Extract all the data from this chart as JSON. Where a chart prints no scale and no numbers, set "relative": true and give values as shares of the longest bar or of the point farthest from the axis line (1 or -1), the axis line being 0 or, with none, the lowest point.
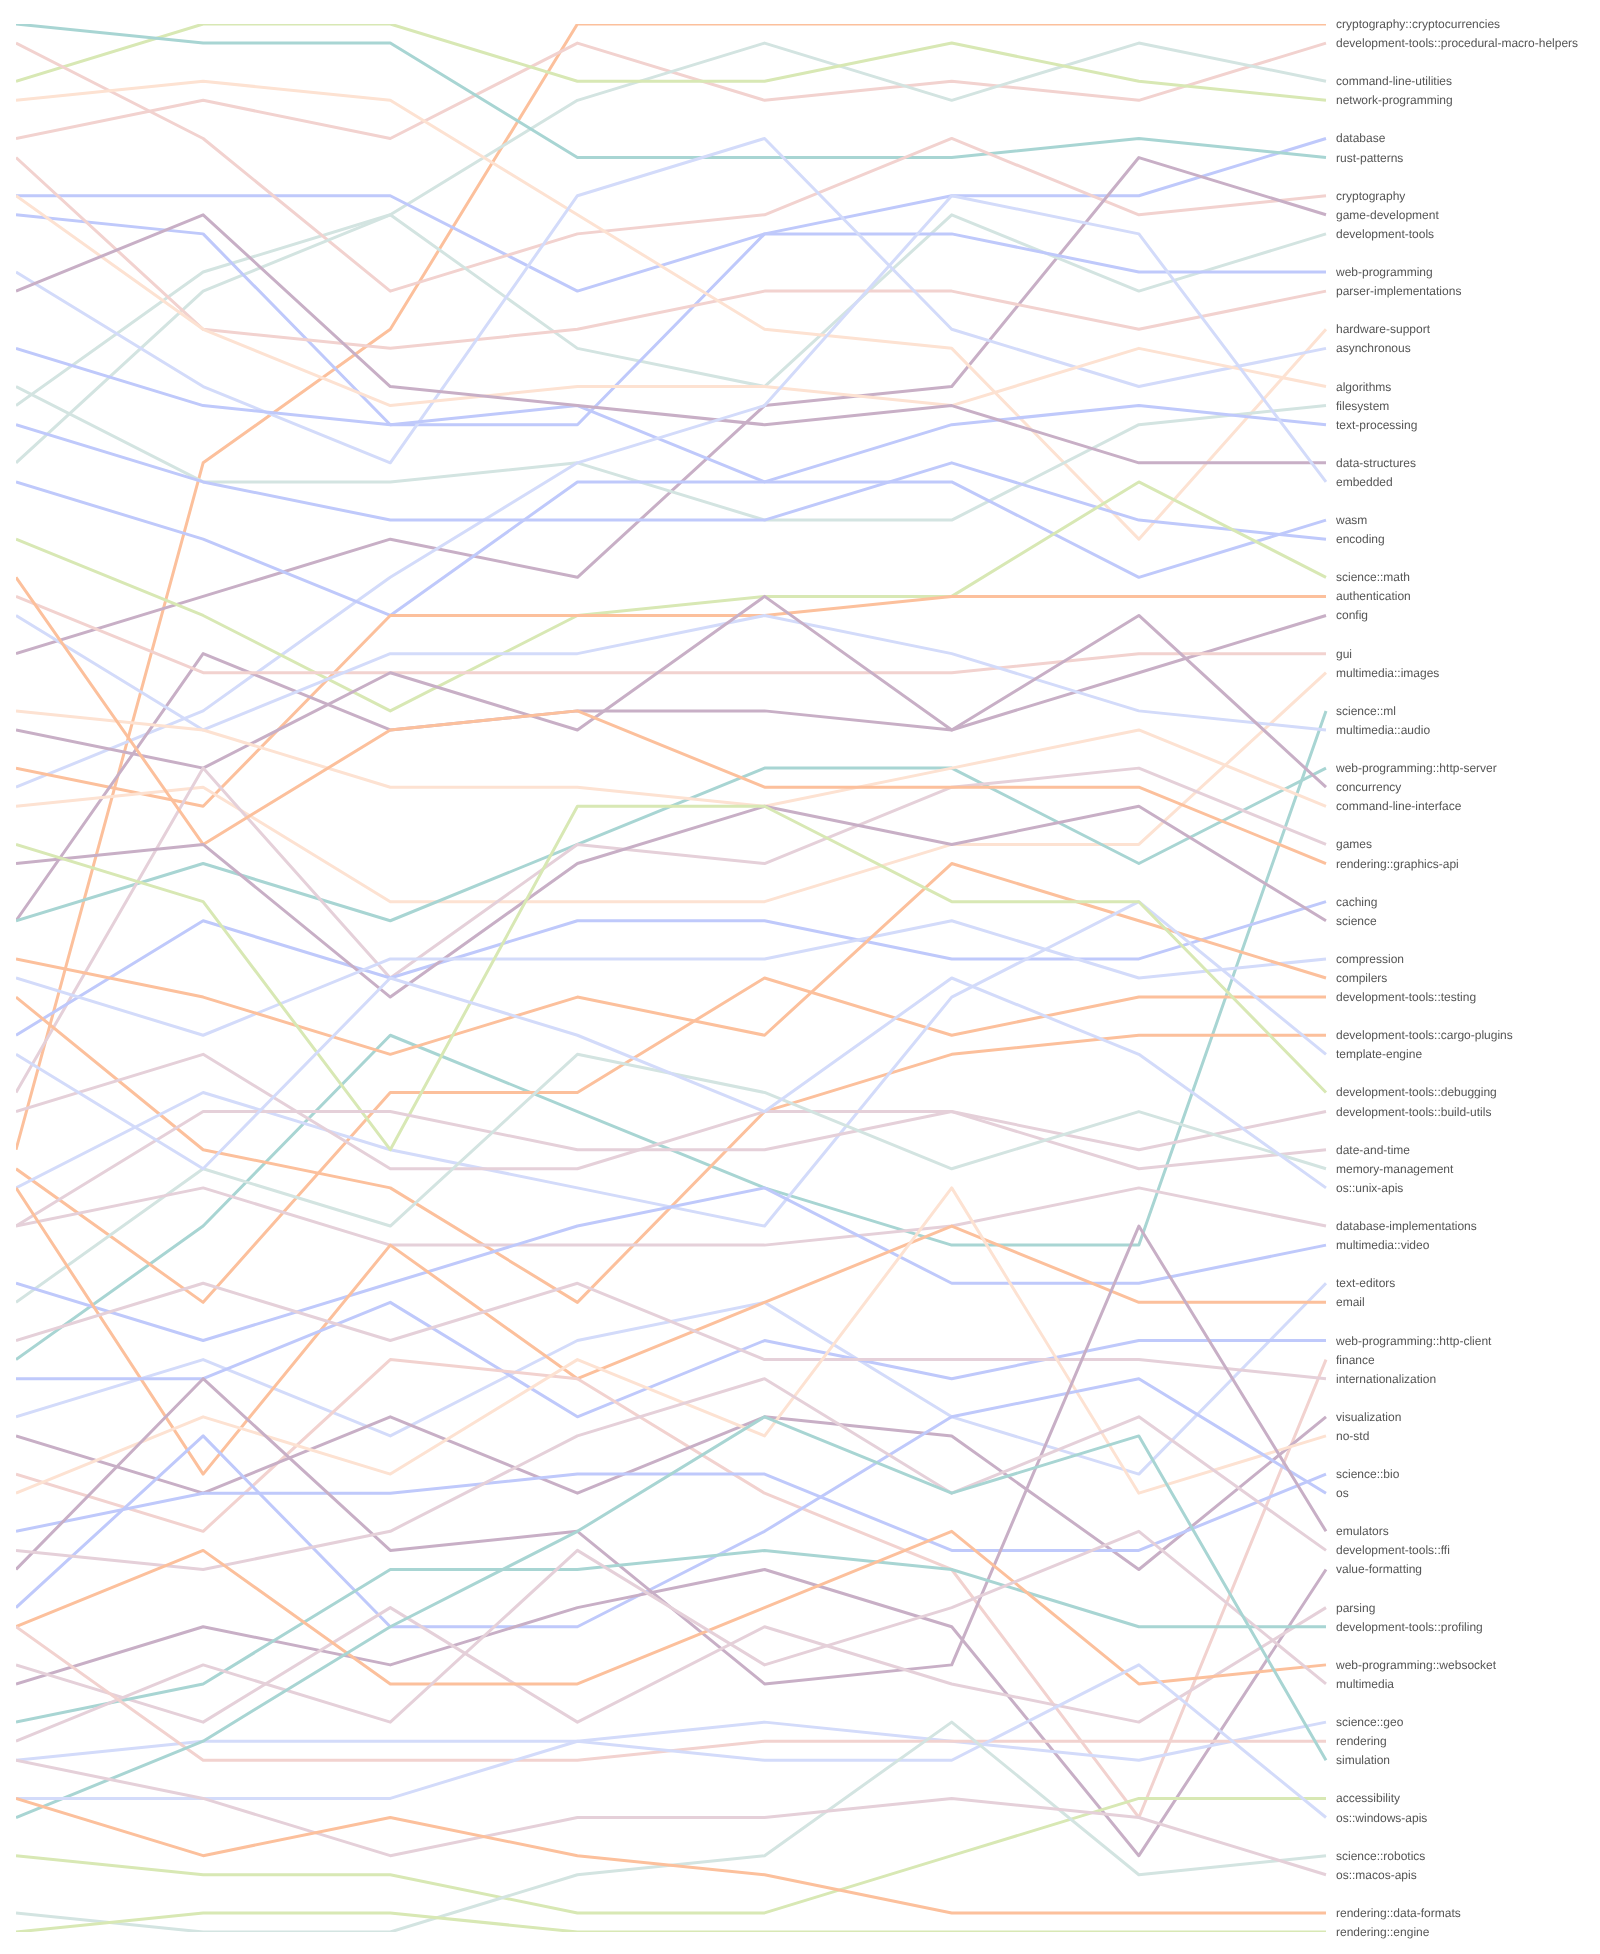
{
  "chart_data": {
    "type": "line",
    "relative": true,
    "categories": [
      null,
      null,
      null,
      null,
      null,
      null,
      null,
      null
    ],
    "series": [
      {
        "name": "cryptography::cryptocurrencies",
        "color": "#fcc09c",
        "values": [
          0.41,
          0.77,
          0.84,
          1,
          1,
          1,
          1,
          1
        ]
      },
      {
        "name": "development-tools::procedural-macro-helpers",
        "color": "#f2d2cf",
        "values": [
          0.94,
          0.96,
          0.94,
          0.99,
          0.96,
          0.97,
          0.96,
          0.99
        ]
      },
      {
        "name": "command-line-utilities",
        "color": "#d3e4e1",
        "values": [
          0.8,
          0.87,
          0.9,
          0.96,
          0.99,
          0.96,
          0.99,
          0.97
        ]
      },
      {
        "name": "network-programming",
        "color": "#d8e8b4",
        "values": [
          0.97,
          1,
          1,
          0.97,
          0.97,
          0.99,
          0.97,
          0.96
        ]
      },
      {
        "name": "database",
        "color": "#bfc9fb",
        "values": [
          0.91,
          0.91,
          0.91,
          0.86,
          0.89,
          0.91,
          0.91,
          0.94
        ]
      },
      {
        "name": "rust-patterns",
        "color": "#a8d5d3",
        "values": [
          1,
          0.99,
          0.99,
          0.93,
          0.93,
          0.93,
          0.94,
          0.93
        ]
      },
      {
        "name": "cryptography",
        "color": "#f2d2cf",
        "values": [
          0.99,
          0.94,
          0.86,
          0.89,
          0.9,
          0.94,
          0.9,
          0.91
        ]
      },
      {
        "name": "game-development",
        "color": "#c8afc6",
        "values": [
          0.67,
          0.7,
          0.73,
          0.71,
          0.8,
          0.81,
          0.93,
          0.9
        ]
      },
      {
        "name": "development-tools",
        "color": "#d3e4e1",
        "values": [
          0.77,
          0.86,
          0.9,
          0.83,
          0.81,
          0.9,
          0.86,
          0.89
        ]
      },
      {
        "name": "web-programming",
        "color": "#bfc9fb",
        "values": [
          0.9,
          0.89,
          0.79,
          0.79,
          0.89,
          0.89,
          0.87,
          0.87
        ]
      },
      {
        "name": "parser-implementations",
        "color": "#f2d2cf",
        "values": [
          0.93,
          0.84,
          0.83,
          0.84,
          0.86,
          0.86,
          0.84,
          0.86
        ]
      },
      {
        "name": "hardware-support",
        "color": "#fde2d2",
        "values": [
          0.96,
          0.97,
          0.96,
          0.9,
          0.84,
          0.83,
          0.73,
          0.84
        ]
      },
      {
        "name": "asynchronous",
        "color": "#d3dbfa",
        "values": [
          0.87,
          0.81,
          0.77,
          0.91,
          0.94,
          0.84,
          0.81,
          0.83
        ]
      },
      {
        "name": "algorithms",
        "color": "#fde2d2",
        "values": [
          0.91,
          0.84,
          0.8,
          0.81,
          0.81,
          0.8,
          0.83,
          0.81
        ]
      },
      {
        "name": "filesystem",
        "color": "#d3e4e1",
        "values": [
          0.81,
          0.76,
          0.76,
          0.77,
          0.74,
          0.74,
          0.79,
          0.8
        ]
      },
      {
        "name": "text-processing",
        "color": "#bfc9fb",
        "values": [
          0.83,
          0.8,
          0.79,
          0.8,
          0.76,
          0.79,
          0.8,
          0.79
        ]
      },
      {
        "name": "data-structures",
        "color": "#c8afc6",
        "values": [
          0.86,
          0.9,
          0.81,
          0.8,
          0.79,
          0.8,
          0.77,
          0.77
        ]
      },
      {
        "name": "embedded",
        "color": "#d3dbfa",
        "values": [
          0.6,
          0.64,
          0.71,
          0.77,
          0.8,
          0.91,
          0.89,
          0.76
        ]
      },
      {
        "name": "wasm",
        "color": "#bfc9fb",
        "values": [
          0.76,
          0.73,
          0.69,
          0.76,
          0.76,
          0.76,
          0.71,
          0.74
        ]
      },
      {
        "name": "encoding",
        "color": "#bfc9fb",
        "values": [
          0.79,
          0.76,
          0.74,
          0.74,
          0.74,
          0.77,
          0.74,
          0.73
        ]
      },
      {
        "name": "science::math",
        "color": "#d8e8b4",
        "values": [
          0.73,
          0.69,
          0.64,
          0.69,
          0.7,
          0.7,
          0.76,
          0.71
        ]
      },
      {
        "name": "authentication",
        "color": "#fcc09c",
        "values": [
          0.61,
          0.59,
          0.69,
          0.69,
          0.69,
          0.7,
          0.7,
          0.7
        ]
      },
      {
        "name": "config",
        "color": "#c8afc6",
        "values": [
          0.53,
          0.67,
          0.63,
          0.64,
          0.64,
          0.63,
          0.66,
          0.69
        ]
      },
      {
        "name": "gui",
        "color": "#f2d2cf",
        "values": [
          0.7,
          0.66,
          0.66,
          0.66,
          0.66,
          0.66,
          0.67,
          0.67
        ]
      },
      {
        "name": "multimedia::images",
        "color": "#fde2d2",
        "values": [
          0.59,
          0.6,
          0.54,
          0.54,
          0.54,
          0.57,
          0.57,
          0.66
        ]
      },
      {
        "name": "science::ml",
        "color": "#a8d5d3",
        "values": [
          0.3,
          0.37,
          0.47,
          0.43,
          0.39,
          0.36,
          0.36,
          0.64
        ]
      },
      {
        "name": "multimedia::audio",
        "color": "#d3dbfa",
        "values": [
          0.69,
          0.63,
          0.67,
          0.67,
          0.69,
          0.67,
          0.64,
          0.63
        ]
      },
      {
        "name": "web-programming::http-server",
        "color": "#a8d5d3",
        "values": [
          0.53,
          0.56,
          0.53,
          0.57,
          0.61,
          0.61,
          0.56,
          0.61
        ]
      },
      {
        "name": "concurrency",
        "color": "#c8afc6",
        "values": [
          0.63,
          0.61,
          0.66,
          0.63,
          0.7,
          0.63,
          0.69,
          0.6
        ]
      },
      {
        "name": "command-line-interface",
        "color": "#fde2d2",
        "values": [
          0.64,
          0.63,
          0.6,
          0.6,
          0.59,
          0.61,
          0.63,
          0.59
        ]
      },
      {
        "name": "games",
        "color": "#e5d0d9",
        "values": [
          0.44,
          0.61,
          0.5,
          0.57,
          0.56,
          0.6,
          0.61,
          0.57
        ]
      },
      {
        "name": "rendering::graphics-api",
        "color": "#fcc09c",
        "values": [
          0.71,
          0.57,
          0.63,
          0.64,
          0.6,
          0.6,
          0.6,
          0.56
        ]
      },
      {
        "name": "caching",
        "color": "#bfc9fb",
        "values": [
          0.47,
          0.53,
          0.5,
          0.53,
          0.53,
          0.51,
          0.51,
          0.54
        ]
      },
      {
        "name": "science",
        "color": "#c8afc6",
        "values": [
          0.56,
          0.57,
          0.49,
          0.56,
          0.59,
          0.57,
          0.59,
          0.53
        ]
      },
      {
        "name": "compression",
        "color": "#d3dbfa",
        "values": [
          0.5,
          0.47,
          0.51,
          0.51,
          0.51,
          0.53,
          0.5,
          0.51
        ]
      },
      {
        "name": "compilers",
        "color": "#fcc09c",
        "values": [
          0.51,
          0.49,
          0.46,
          0.49,
          0.47,
          0.56,
          0.53,
          0.5
        ]
      },
      {
        "name": "development-tools::testing",
        "color": "#fcc09c",
        "values": [
          0.4,
          0.33,
          0.44,
          0.44,
          0.5,
          0.47,
          0.49,
          0.49
        ]
      },
      {
        "name": "development-tools::cargo-plugins",
        "color": "#fcc09c",
        "values": [
          0.49,
          0.41,
          0.39,
          0.33,
          0.43,
          0.46,
          0.47,
          0.47
        ]
      },
      {
        "name": "template-engine",
        "color": "#d3dbfa",
        "values": [
          0.39,
          0.44,
          0.41,
          0.39,
          0.37,
          0.49,
          0.54,
          0.46
        ]
      },
      {
        "name": "development-tools::debugging",
        "color": "#d8e8b4",
        "values": [
          0.57,
          0.54,
          0.41,
          0.59,
          0.59,
          0.54,
          0.54,
          0.44
        ]
      },
      {
        "name": "development-tools::build-utils",
        "color": "#e5d0d9",
        "values": [
          0.37,
          0.43,
          0.43,
          0.41,
          0.41,
          0.43,
          0.41,
          0.43
        ]
      },
      {
        "name": "date-and-time",
        "color": "#e5d0d9",
        "values": [
          0.43,
          0.46,
          0.4,
          0.4,
          0.43,
          0.43,
          0.4,
          0.41
        ]
      },
      {
        "name": "memory-management",
        "color": "#d3e4e1",
        "values": [
          0.33,
          0.4,
          0.37,
          0.46,
          0.44,
          0.4,
          0.43,
          0.4
        ]
      },
      {
        "name": "os::unix-apis",
        "color": "#d3dbfa",
        "values": [
          0.46,
          0.4,
          0.5,
          0.47,
          0.43,
          0.5,
          0.46,
          0.39
        ]
      },
      {
        "name": "database-implementations",
        "color": "#e5d0d9",
        "values": [
          0.37,
          0.39,
          0.36,
          0.36,
          0.36,
          0.37,
          0.39,
          0.37
        ]
      },
      {
        "name": "multimedia::video",
        "color": "#bfc9fb",
        "values": [
          0.34,
          0.31,
          0.34,
          0.37,
          0.39,
          0.34,
          0.34,
          0.36
        ]
      },
      {
        "name": "text-editors",
        "color": "#d3dbfa",
        "values": [
          0.27,
          0.3,
          0.26,
          0.31,
          0.33,
          0.27,
          0.24,
          0.34
        ]
      },
      {
        "name": "email",
        "color": "#fcc09c",
        "values": [
          0.39,
          0.24,
          0.36,
          0.29,
          0.33,
          0.37,
          0.33,
          0.33
        ]
      },
      {
        "name": "web-programming::http-client",
        "color": "#bfc9fb",
        "values": [
          0.29,
          0.29,
          0.33,
          0.27,
          0.31,
          0.29,
          0.31,
          0.31
        ]
      },
      {
        "name": "finance",
        "color": "#f2d2cf",
        "values": [
          0.24,
          0.21,
          0.3,
          0.29,
          0.23,
          0.19,
          0.06,
          0.3
        ]
      },
      {
        "name": "internationalization",
        "color": "#e5d0d9",
        "values": [
          0.31,
          0.34,
          0.31,
          0.34,
          0.3,
          0.3,
          0.3,
          0.29
        ]
      },
      {
        "name": "visualization",
        "color": "#c8afc6",
        "values": [
          0.26,
          0.23,
          0.27,
          0.23,
          0.27,
          0.26,
          0.19,
          0.27
        ]
      },
      {
        "name": "no-std",
        "color": "#fde2d2",
        "values": [
          0.23,
          0.27,
          0.24,
          0.3,
          0.26,
          0.39,
          0.23,
          0.26
        ]
      },
      {
        "name": "science::bio",
        "color": "#bfc9fb",
        "values": [
          0.21,
          0.23,
          0.23,
          0.24,
          0.24,
          0.2,
          0.2,
          0.24
        ]
      },
      {
        "name": "os",
        "color": "#bfc9fb",
        "values": [
          0.17,
          0.26,
          0.16,
          0.16,
          0.21,
          0.27,
          0.29,
          0.23
        ]
      },
      {
        "name": "emulators",
        "color": "#c8afc6",
        "values": [
          0.19,
          0.29,
          0.2,
          0.21,
          0.13,
          0.14,
          0.37,
          0.21
        ]
      },
      {
        "name": "development-tools::ffi",
        "color": "#e5d0d9",
        "values": [
          0.2,
          0.19,
          0.21,
          0.26,
          0.29,
          0.23,
          0.27,
          0.2
        ]
      },
      {
        "name": "value-formatting",
        "color": "#c8afc6",
        "values": [
          0.13,
          0.16,
          0.14,
          0.17,
          0.19,
          0.16,
          0.04,
          0.19
        ]
      },
      {
        "name": "parsing",
        "color": "#e5d0d9",
        "values": [
          0.14,
          0.11,
          0.17,
          0.11,
          0.16,
          0.13,
          0.11,
          0.17
        ]
      },
      {
        "name": "development-tools::profiling",
        "color": "#a8d5d3",
        "values": [
          0.11,
          0.13,
          0.19,
          0.19,
          0.2,
          0.19,
          0.16,
          0.16
        ]
      },
      {
        "name": "web-programming::websocket",
        "color": "#fcc09c",
        "values": [
          0.16,
          0.2,
          0.13,
          0.13,
          0.17,
          0.21,
          0.13,
          0.14
        ]
      },
      {
        "name": "multimedia",
        "color": "#e5d0d9",
        "values": [
          0.1,
          0.14,
          0.11,
          0.2,
          0.14,
          0.17,
          0.21,
          0.13
        ]
      },
      {
        "name": "science::geo",
        "color": "#d3dbfa",
        "values": [
          0.09,
          0.1,
          0.1,
          0.1,
          0.11,
          0.1,
          0.09,
          0.11
        ]
      },
      {
        "name": "rendering",
        "color": "#f2d2cf",
        "values": [
          0.16,
          0.09,
          0.09,
          0.09,
          0.1,
          0.1,
          0.1,
          0.1
        ]
      },
      {
        "name": "simulation",
        "color": "#a8d5d3",
        "values": [
          0.06,
          0.1,
          0.16,
          0.21,
          0.27,
          0.23,
          0.26,
          0.09
        ]
      },
      {
        "name": "accessibility",
        "color": "#d8e8b4",
        "values": [
          0.04,
          0.03,
          0.03,
          0.01,
          0.01,
          0.04,
          0.07,
          0.07
        ]
      },
      {
        "name": "os::windows-apis",
        "color": "#d3dbfa",
        "values": [
          0.07,
          0.07,
          0.07,
          0.1,
          0.09,
          0.09,
          0.14,
          0.06
        ]
      },
      {
        "name": "science::robotics",
        "color": "#d3e4e1",
        "values": [
          0.01,
          0,
          0,
          0.03,
          0.04,
          0.11,
          0.03,
          0.04
        ]
      },
      {
        "name": "os::macos-apis",
        "color": "#e5d0d9",
        "values": [
          0.09,
          0.07,
          0.04,
          0.06,
          0.06,
          0.07,
          0.06,
          0.03
        ]
      },
      {
        "name": "rendering::data-formats",
        "color": "#fcc09c",
        "values": [
          0.07,
          0.04,
          0.06,
          0.04,
          0.03,
          0.01,
          0.01,
          0.01
        ]
      },
      {
        "name": "rendering::engine",
        "color": "#d8e8b4",
        "values": [
          0,
          0.01,
          0.01,
          0,
          0,
          0,
          0,
          0
        ]
      }
    ]
  }
}
